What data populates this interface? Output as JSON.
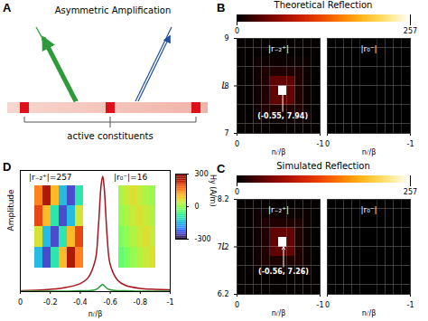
{
  "diagram": {
    "panel": "A",
    "title": "Asymmetric Amplification",
    "label": "active constituents",
    "constituents": 3
  },
  "chart_data": [
    {
      "type": "heatmap",
      "panel": "B",
      "title": "Theoretical Reflection",
      "x_label": "nᵢⁱ/β",
      "y_label": "L",
      "xlim": [
        0,
        -1
      ],
      "xticks": [
        0,
        -1
      ],
      "ylim": [
        7,
        9
      ],
      "yticks": [
        7,
        8,
        9
      ],
      "colorbar": {
        "range": [
          0,
          257
        ],
        "ticks": [
          0,
          257
        ]
      },
      "x_bins": [
        0,
        -0.1,
        -0.2,
        -0.3,
        -0.4,
        -0.5,
        -0.6,
        -0.7,
        -0.8,
        -0.9,
        -1
      ],
      "y_bins": [
        7,
        7.2,
        7.4,
        7.6,
        7.8,
        8,
        8.2,
        8.4,
        8.6,
        8.8,
        9
      ],
      "maps": [
        {
          "title": "|r₋₂⁺|",
          "annotation": {
            "x": -0.55,
            "y": 7.94,
            "label": "(-0.55, 7.94)"
          },
          "cells": [
            [
              2,
              2,
              2,
              2,
              2,
              2,
              2,
              2,
              2,
              2
            ],
            [
              2,
              2,
              5,
              5,
              5,
              5,
              5,
              5,
              5,
              2
            ],
            [
              2,
              2,
              5,
              12,
              12,
              12,
              12,
              12,
              5,
              2
            ],
            [
              2,
              2,
              5,
              12,
              40,
              40,
              40,
              12,
              5,
              2
            ],
            [
              2,
              2,
              5,
              12,
              40,
              257,
              40,
              12,
              5,
              2
            ],
            [
              2,
              2,
              5,
              12,
              40,
              40,
              40,
              12,
              5,
              2
            ],
            [
              2,
              2,
              5,
              12,
              12,
              12,
              12,
              12,
              5,
              2
            ],
            [
              2,
              2,
              5,
              5,
              5,
              5,
              5,
              5,
              5,
              2
            ],
            [
              2,
              2,
              2,
              2,
              2,
              2,
              2,
              2,
              2,
              2
            ],
            [
              2,
              2,
              2,
              2,
              2,
              2,
              2,
              2,
              2,
              2
            ]
          ]
        },
        {
          "title": "|r₀⁻|",
          "cells": [
            [
              0,
              0,
              0,
              0,
              0,
              0,
              0,
              0,
              0,
              0
            ],
            [
              0,
              0,
              0,
              0,
              0,
              0,
              0,
              0,
              0,
              0
            ],
            [
              0,
              0,
              0,
              0,
              0,
              0,
              0,
              0,
              0,
              0
            ],
            [
              0,
              0,
              0,
              0,
              0,
              0,
              0,
              0,
              0,
              0
            ],
            [
              0,
              0,
              0,
              0,
              0,
              0,
              0,
              0,
              0,
              0
            ],
            [
              0,
              0,
              0,
              0,
              0,
              0,
              0,
              0,
              0,
              0
            ],
            [
              0,
              0,
              0,
              0,
              0,
              0,
              0,
              0,
              0,
              0
            ],
            [
              0,
              0,
              0,
              0,
              0,
              0,
              0,
              0,
              0,
              0
            ],
            [
              0,
              0,
              0,
              0,
              0,
              0,
              0,
              0,
              0,
              0
            ],
            [
              0,
              0,
              0,
              0,
              0,
              0,
              0,
              0,
              0,
              0
            ]
          ]
        }
      ]
    },
    {
      "type": "heatmap",
      "panel": "C",
      "title": "Simulated Reflection",
      "x_label": "nᵢⁱ/β",
      "y_label": "L",
      "xlim": [
        0,
        -1
      ],
      "xticks": [
        0,
        -1
      ],
      "ylim": [
        6.2,
        8.2
      ],
      "yticks": [
        6.2,
        7.2,
        8.2
      ],
      "colorbar": {
        "range": [
          0,
          257
        ],
        "ticks": [
          0,
          257
        ]
      },
      "x_bins": [
        0,
        -0.1,
        -0.2,
        -0.3,
        -0.4,
        -0.5,
        -0.6,
        -0.7,
        -0.8,
        -0.9,
        -1
      ],
      "y_bins": [
        6.2,
        6.4,
        6.6,
        6.8,
        7,
        7.2,
        7.4,
        7.6,
        7.8,
        8,
        8.2
      ],
      "maps": [
        {
          "title": "|r₋₂⁺|",
          "annotation": {
            "x": -0.56,
            "y": 7.26,
            "label": "(-0.56, 7.26)"
          },
          "cells": [
            [
              2,
              2,
              2,
              2,
              2,
              2,
              2,
              2,
              2,
              2
            ],
            [
              2,
              2,
              2,
              2,
              2,
              2,
              2,
              2,
              2,
              2
            ],
            [
              2,
              2,
              5,
              5,
              5,
              5,
              5,
              5,
              5,
              2
            ],
            [
              2,
              2,
              5,
              12,
              12,
              12,
              12,
              12,
              5,
              2
            ],
            [
              2,
              2,
              5,
              12,
              40,
              40,
              40,
              12,
              5,
              2
            ],
            [
              2,
              2,
              5,
              12,
              40,
              257,
              40,
              12,
              5,
              2
            ],
            [
              2,
              2,
              5,
              12,
              40,
              40,
              40,
              12,
              5,
              2
            ],
            [
              2,
              2,
              5,
              12,
              12,
              12,
              12,
              12,
              5,
              2
            ],
            [
              2,
              2,
              5,
              5,
              5,
              5,
              5,
              5,
              5,
              2
            ],
            [
              2,
              2,
              2,
              2,
              2,
              2,
              2,
              2,
              2,
              2
            ]
          ]
        },
        {
          "title": "|r₀⁻|",
          "cells": [
            [
              0,
              0,
              0,
              0,
              0,
              0,
              0,
              0,
              0,
              0
            ],
            [
              0,
              0,
              0,
              0,
              0,
              0,
              0,
              0,
              0,
              0
            ],
            [
              0,
              0,
              0,
              0,
              0,
              0,
              0,
              0,
              0,
              0
            ],
            [
              0,
              0,
              0,
              0,
              0,
              0,
              0,
              0,
              0,
              0
            ],
            [
              0,
              0,
              0,
              0,
              0,
              0,
              0,
              0,
              0,
              0
            ],
            [
              0,
              0,
              0,
              0,
              0,
              0,
              0,
              0,
              0,
              0
            ],
            [
              0,
              0,
              0,
              0,
              0,
              0,
              0,
              0,
              0,
              0
            ],
            [
              0,
              0,
              0,
              0,
              0,
              0,
              0,
              0,
              0,
              0
            ],
            [
              0,
              0,
              0,
              0,
              0,
              0,
              0,
              0,
              0,
              0
            ],
            [
              0,
              0,
              0,
              0,
              0,
              0,
              0,
              0,
              0,
              0
            ]
          ]
        }
      ]
    },
    {
      "type": "line",
      "panel": "D",
      "x_label": "nᵢⁱ/β",
      "y_label": "Amplitude",
      "xlim": [
        0,
        -1
      ],
      "xticks": [
        0,
        -0.2,
        -0.4,
        -0.6,
        -0.8,
        -1
      ],
      "ylim": [
        0,
        270
      ],
      "tick_labels": "x",
      "x": [
        0,
        -0.1,
        -0.2,
        -0.3,
        -0.4,
        -0.45,
        -0.5,
        -0.52,
        -0.54,
        -0.55,
        -0.56,
        -0.58,
        -0.6,
        -0.65,
        -0.7,
        -0.8,
        -0.9,
        -1
      ],
      "series": [
        {
          "name": "|r₋₂⁺|=257",
          "color": "#a8141e",
          "values": [
            2,
            3,
            5,
            9,
            18,
            30,
            70,
            140,
            240,
            257,
            230,
            120,
            60,
            25,
            14,
            7,
            5,
            4
          ],
          "inset": [
            [
              150,
              250,
              100,
              -150,
              -250,
              -100
            ],
            [
              200,
              100,
              -100,
              -250,
              -150,
              50
            ],
            [
              50,
              -150,
              -250,
              -100,
              100,
              200
            ],
            [
              -150,
              -250,
              -100,
              100,
              250,
              150
            ]
          ]
        },
        {
          "name": "|r₀⁻|=16",
          "color": "#2e9b3a",
          "values": [
            1,
            1,
            1,
            1,
            2,
            2,
            4,
            8,
            14,
            16,
            13,
            7,
            4,
            2,
            2,
            1,
            1,
            1
          ],
          "inset": [
            [
              20,
              40,
              60,
              40,
              20,
              0
            ],
            [
              0,
              20,
              40,
              60,
              40,
              20
            ],
            [
              -20,
              0,
              20,
              40,
              60,
              40
            ],
            [
              -40,
              -20,
              0,
              20,
              40,
              60
            ]
          ]
        }
      ],
      "colorbar": {
        "label": "Hy (A/m)",
        "range": [
          -300,
          300
        ],
        "ticks": [
          300,
          0,
          -300
        ]
      }
    }
  ]
}
